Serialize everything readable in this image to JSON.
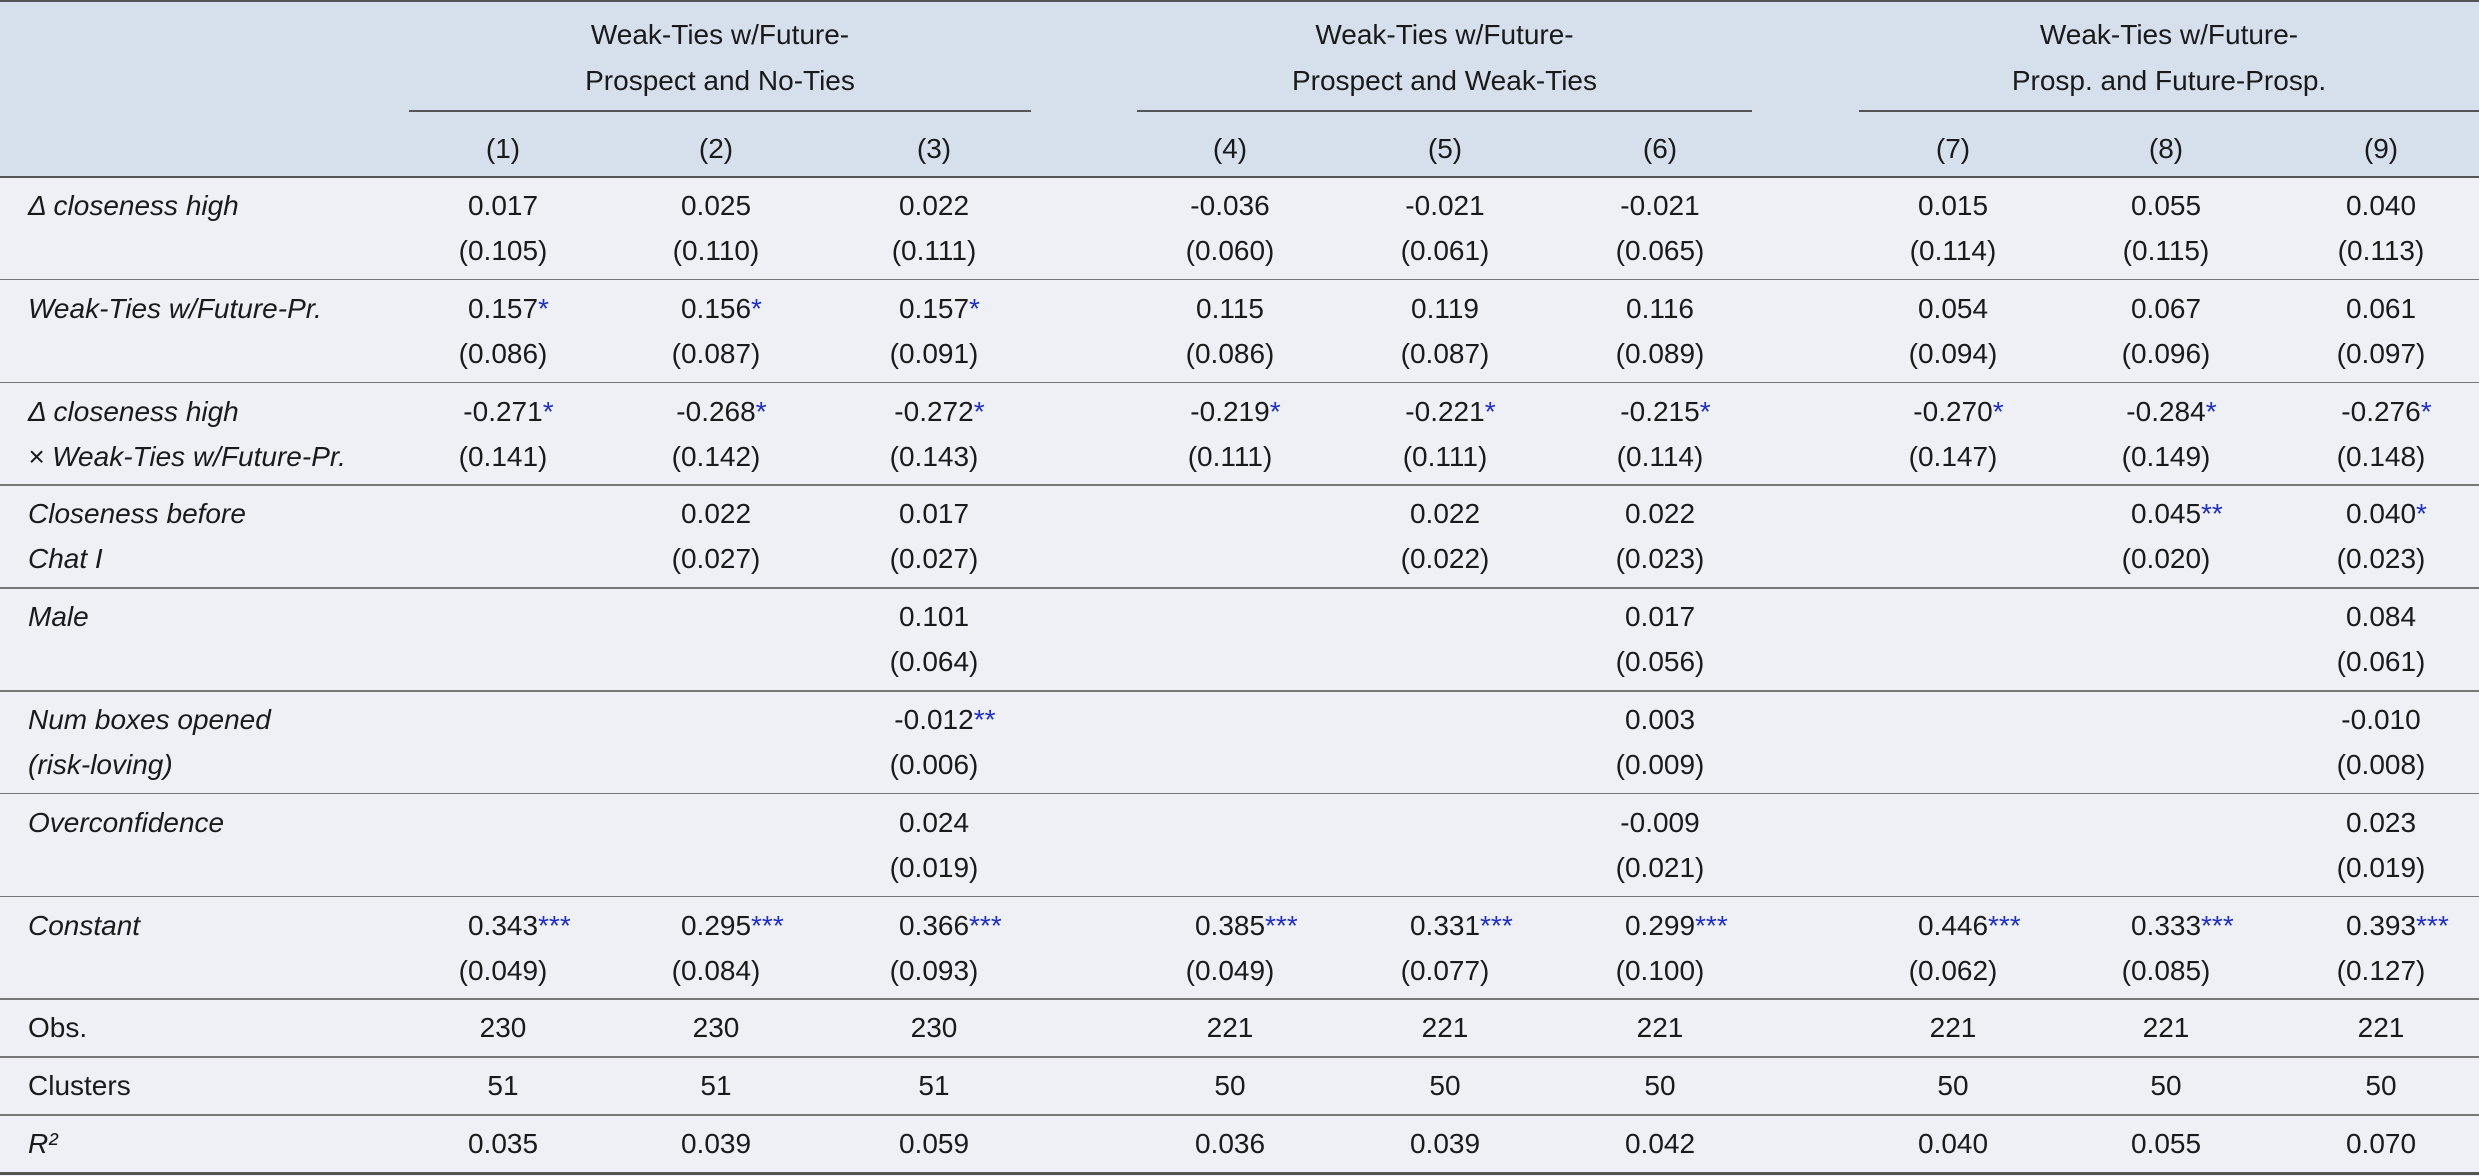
{
  "table": {
    "group_headers": [
      [
        "Weak-Ties w/Future-",
        "Prospect and No-Ties"
      ],
      [
        "Weak-Ties w/Future-",
        "Prospect and Weak-Ties"
      ],
      [
        "Weak-Ties w/Future-",
        "Prosp. and Future-Prosp."
      ]
    ],
    "column_numbers": [
      "(1)",
      "(2)",
      "(3)",
      "(4)",
      "(5)",
      "(6)",
      "(7)",
      "(8)",
      "(9)"
    ],
    "rows": [
      {
        "label": [
          "Δ closeness high"
        ],
        "cells": [
          {
            "coef": "0.017",
            "se": "(0.105)"
          },
          {
            "coef": "0.025",
            "se": "(0.110)"
          },
          {
            "coef": "0.022",
            "se": "(0.111)"
          },
          {
            "coef": "-0.036",
            "se": "(0.060)"
          },
          {
            "coef": "-0.021",
            "se": "(0.061)"
          },
          {
            "coef": "-0.021",
            "se": "(0.065)"
          },
          {
            "coef": "0.015",
            "se": "(0.114)"
          },
          {
            "coef": "0.055",
            "se": "(0.115)"
          },
          {
            "coef": "0.040",
            "se": "(0.113)"
          }
        ]
      },
      {
        "label": [
          "Weak-Ties w/Future-Pr."
        ],
        "cells": [
          {
            "coef": "0.157",
            "stars": "*",
            "se": "(0.086)"
          },
          {
            "coef": "0.156",
            "stars": "*",
            "se": "(0.087)"
          },
          {
            "coef": "0.157",
            "stars": "*",
            "se": "(0.091)"
          },
          {
            "coef": "0.115",
            "se": "(0.086)"
          },
          {
            "coef": "0.119",
            "se": "(0.087)"
          },
          {
            "coef": "0.116",
            "se": "(0.089)"
          },
          {
            "coef": "0.054",
            "se": "(0.094)"
          },
          {
            "coef": "0.067",
            "se": "(0.096)"
          },
          {
            "coef": "0.061",
            "se": "(0.097)"
          }
        ]
      },
      {
        "label": [
          "Δ closeness high",
          "× Weak-Ties w/Future-Pr."
        ],
        "cells": [
          {
            "coef": "-0.271",
            "stars": "*",
            "se": "(0.141)"
          },
          {
            "coef": "-0.268",
            "stars": "*",
            "se": "(0.142)"
          },
          {
            "coef": "-0.272",
            "stars": "*",
            "se": "(0.143)"
          },
          {
            "coef": "-0.219",
            "stars": "*",
            "se": "(0.111)"
          },
          {
            "coef": "-0.221",
            "stars": "*",
            "se": "(0.111)"
          },
          {
            "coef": "-0.215",
            "stars": "*",
            "se": "(0.114)"
          },
          {
            "coef": "-0.270",
            "stars": "*",
            "se": "(0.147)"
          },
          {
            "coef": "-0.284",
            "stars": "*",
            "se": "(0.149)"
          },
          {
            "coef": "-0.276",
            "stars": "*",
            "se": "(0.148)"
          }
        ]
      },
      {
        "label": [
          "Closeness before",
          "Chat I"
        ],
        "cells": [
          null,
          {
            "coef": "0.022",
            "se": "(0.027)"
          },
          {
            "coef": "0.017",
            "se": "(0.027)"
          },
          null,
          {
            "coef": "0.022",
            "se": "(0.022)"
          },
          {
            "coef": "0.022",
            "se": "(0.023)"
          },
          null,
          {
            "coef": "0.045",
            "stars": "**",
            "se": "(0.020)"
          },
          {
            "coef": "0.040",
            "stars": "*",
            "se": "(0.023)"
          }
        ]
      },
      {
        "label": [
          "Male"
        ],
        "cells": [
          null,
          null,
          {
            "coef": "0.101",
            "se": "(0.064)"
          },
          null,
          null,
          {
            "coef": "0.017",
            "se": "(0.056)"
          },
          null,
          null,
          {
            "coef": "0.084",
            "se": "(0.061)"
          }
        ]
      },
      {
        "label": [
          "Num boxes opened",
          "(risk-loving)"
        ],
        "cells": [
          null,
          null,
          {
            "coef": "-0.012",
            "stars": "**",
            "se": "(0.006)"
          },
          null,
          null,
          {
            "coef": "0.003",
            "se": "(0.009)"
          },
          null,
          null,
          {
            "coef": "-0.010",
            "se": "(0.008)"
          }
        ]
      },
      {
        "label": [
          "Overconfidence"
        ],
        "cells": [
          null,
          null,
          {
            "coef": "0.024",
            "se": "(0.019)"
          },
          null,
          null,
          {
            "coef": "-0.009",
            "se": "(0.021)"
          },
          null,
          null,
          {
            "coef": "0.023",
            "se": "(0.019)"
          }
        ]
      },
      {
        "label": [
          "Constant"
        ],
        "cells": [
          {
            "coef": "0.343",
            "stars": "***",
            "se": "(0.049)"
          },
          {
            "coef": "0.295",
            "stars": "***",
            "se": "(0.084)"
          },
          {
            "coef": "0.366",
            "stars": "***",
            "se": "(0.093)"
          },
          {
            "coef": "0.385",
            "stars": "***",
            "se": "(0.049)"
          },
          {
            "coef": "0.331",
            "stars": "***",
            "se": "(0.077)"
          },
          {
            "coef": "0.299",
            "stars": "***",
            "se": "(0.100)"
          },
          {
            "coef": "0.446",
            "stars": "***",
            "se": "(0.062)"
          },
          {
            "coef": "0.333",
            "stars": "***",
            "se": "(0.085)"
          },
          {
            "coef": "0.393",
            "stars": "***",
            "se": "(0.127)"
          }
        ]
      }
    ],
    "stats": [
      {
        "label": "Obs.",
        "values": [
          "230",
          "230",
          "230",
          "221",
          "221",
          "221",
          "221",
          "221",
          "221"
        ]
      },
      {
        "label": "Clusters",
        "values": [
          "51",
          "51",
          "51",
          "50",
          "50",
          "50",
          "50",
          "50",
          "50"
        ]
      },
      {
        "label": "R²",
        "italic": true,
        "values": [
          "0.035",
          "0.039",
          "0.059",
          "0.036",
          "0.039",
          "0.042",
          "0.040",
          "0.055",
          "0.070"
        ]
      }
    ]
  }
}
